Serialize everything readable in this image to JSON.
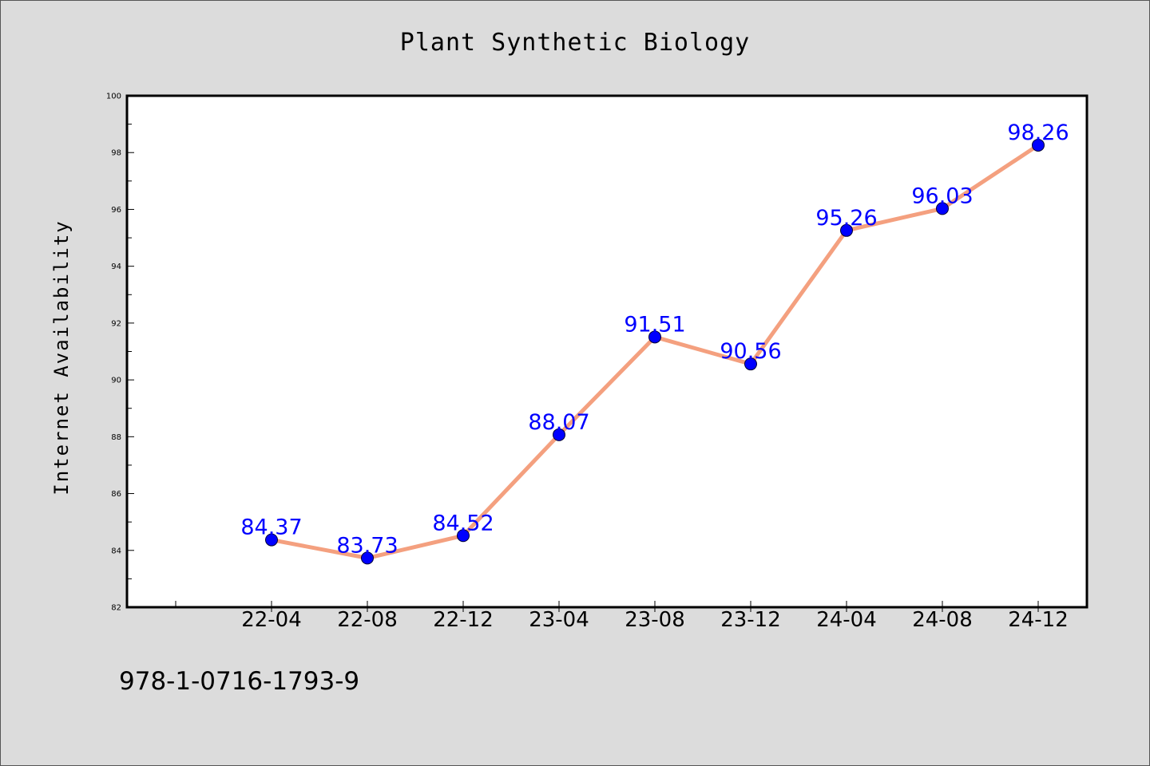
{
  "chart_data": {
    "type": "line",
    "title": "Plant Synthetic Biology",
    "xlabel": "",
    "ylabel": "Internet Availability",
    "categories": [
      "22-04",
      "22-08",
      "22-12",
      "23-04",
      "23-08",
      "23-12",
      "24-04",
      "24-08",
      "24-12"
    ],
    "series": [
      {
        "values": [
          84.37,
          83.73,
          84.52,
          88.07,
          91.51,
          90.56,
          95.26,
          96.03,
          98.26
        ],
        "line_color": "#f4a07f",
        "marker_color": "#0000ff"
      }
    ],
    "data_labels": [
      "84.37",
      "83.73",
      "84.52",
      "88.07",
      "91.51",
      "90.56",
      "95.26",
      "96.03",
      "98.26"
    ],
    "ylim": [
      82,
      100
    ],
    "yticks": [
      82,
      84,
      86,
      88,
      90,
      92,
      94,
      96,
      98,
      100
    ],
    "grid": false,
    "legend": "none"
  },
  "footer": {
    "isbn": "978-1-0716-1793-9"
  },
  "colors": {
    "background": "#dcdcdc",
    "plot_area": "#ffffff",
    "line": "#f4a07f",
    "marker": "#0000ff",
    "data_label": "#0000ff"
  }
}
